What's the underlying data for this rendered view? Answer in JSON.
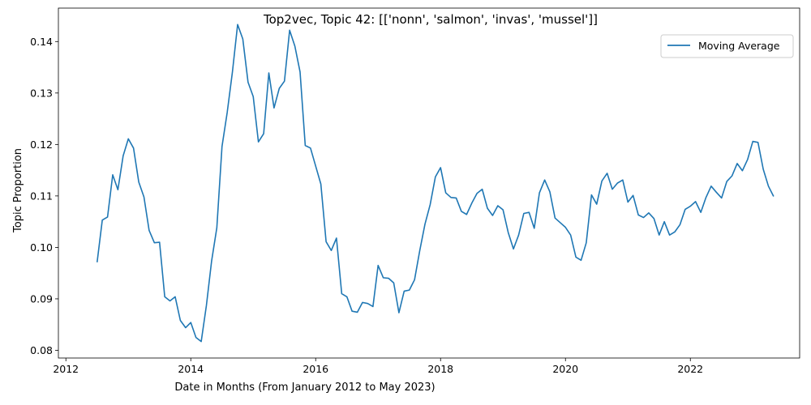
{
  "chart_data": {
    "type": "line",
    "title": "Top2vec, Topic 42: [['nonn', 'salmon', 'invas', 'mussel']]",
    "xlabel": "Date in Months (From January 2012 to May 2023)",
    "ylabel": "Topic Proportion",
    "xlim": [
      2011.88,
      2023.75
    ],
    "ylim": [
      0.0785,
      0.1465
    ],
    "xticks": [
      2012,
      2014,
      2016,
      2018,
      2020,
      2022
    ],
    "xtick_labels": [
      "2012",
      "2014",
      "2016",
      "2018",
      "2020",
      "2022"
    ],
    "yticks": [
      0.08,
      0.09,
      0.1,
      0.11,
      0.12,
      0.13,
      0.14
    ],
    "ytick_labels": [
      "0.08",
      "0.09",
      "0.10",
      "0.11",
      "0.12",
      "0.13",
      "0.14"
    ],
    "grid": false,
    "legend_position": "top-right",
    "line_color": "#1f77b4",
    "series": [
      {
        "name": "Moving Average",
        "x": [
          2012.5,
          2012.583,
          2012.667,
          2012.75,
          2012.833,
          2012.917,
          2013.0,
          2013.083,
          2013.167,
          2013.25,
          2013.333,
          2013.417,
          2013.5,
          2013.583,
          2013.667,
          2013.75,
          2013.833,
          2013.917,
          2014.0,
          2014.083,
          2014.167,
          2014.25,
          2014.333,
          2014.417,
          2014.5,
          2014.583,
          2014.667,
          2014.75,
          2014.833,
          2014.917,
          2015.0,
          2015.083,
          2015.167,
          2015.25,
          2015.333,
          2015.417,
          2015.5,
          2015.583,
          2015.667,
          2015.75,
          2015.833,
          2015.917,
          2016.0,
          2016.083,
          2016.167,
          2016.25,
          2016.333,
          2016.417,
          2016.5,
          2016.583,
          2016.667,
          2016.75,
          2016.833,
          2016.917,
          2017.0,
          2017.083,
          2017.167,
          2017.25,
          2017.333,
          2017.417,
          2017.5,
          2017.583,
          2017.667,
          2017.75,
          2017.833,
          2017.917,
          2018.0,
          2018.083,
          2018.167,
          2018.25,
          2018.333,
          2018.417,
          2018.5,
          2018.583,
          2018.667,
          2018.75,
          2018.833,
          2018.917,
          2019.0,
          2019.083,
          2019.167,
          2019.25,
          2019.333,
          2019.417,
          2019.5,
          2019.583,
          2019.667,
          2019.75,
          2019.833,
          2019.917,
          2020.0,
          2020.083,
          2020.167,
          2020.25,
          2020.333,
          2020.417,
          2020.5,
          2020.583,
          2020.667,
          2020.75,
          2020.833,
          2020.917,
          2021.0,
          2021.083,
          2021.167,
          2021.25,
          2021.333,
          2021.417,
          2021.5,
          2021.583,
          2021.667,
          2021.75,
          2021.833,
          2021.917,
          2022.0,
          2022.083,
          2022.167,
          2022.25,
          2022.333,
          2022.417,
          2022.5,
          2022.583,
          2022.667,
          2022.75,
          2022.833,
          2022.917,
          2023.0,
          2023.083,
          2023.167,
          2023.25,
          2023.333
        ],
        "values": [
          0.0971,
          0.1053,
          0.1059,
          0.1141,
          0.1112,
          0.1178,
          0.1211,
          0.1193,
          0.1127,
          0.1098,
          0.1033,
          0.1009,
          0.101,
          0.0904,
          0.0896,
          0.0904,
          0.0858,
          0.0844,
          0.0854,
          0.0825,
          0.0817,
          0.0887,
          0.0973,
          0.1038,
          0.1196,
          0.1262,
          0.1341,
          0.1433,
          0.1405,
          0.1321,
          0.1293,
          0.1205,
          0.1221,
          0.1339,
          0.1271,
          0.1309,
          0.1323,
          0.1422,
          0.1391,
          0.1341,
          0.1198,
          0.1193,
          0.1158,
          0.1123,
          0.1011,
          0.0994,
          0.1018,
          0.091,
          0.0904,
          0.0876,
          0.0874,
          0.0893,
          0.0891,
          0.0885,
          0.0965,
          0.0941,
          0.094,
          0.0931,
          0.0873,
          0.0915,
          0.0917,
          0.0937,
          0.0994,
          0.1045,
          0.1083,
          0.1137,
          0.1155,
          0.1106,
          0.1097,
          0.1096,
          0.107,
          0.1064,
          0.1086,
          0.1105,
          0.1113,
          0.1076,
          0.1062,
          0.1081,
          0.1073,
          0.1029,
          0.0997,
          0.1024,
          0.1066,
          0.1068,
          0.1037,
          0.1106,
          0.1131,
          0.1108,
          0.1057,
          0.1048,
          0.1039,
          0.1024,
          0.0981,
          0.0975,
          0.1009,
          0.1102,
          0.1084,
          0.1129,
          0.1144,
          0.1113,
          0.1125,
          0.1131,
          0.1088,
          0.1101,
          0.1063,
          0.1058,
          0.1067,
          0.1056,
          0.1024,
          0.105,
          0.1024,
          0.103,
          0.1044,
          0.1074,
          0.108,
          0.1089,
          0.1068,
          0.1097,
          0.1119,
          0.1107,
          0.1096,
          0.1128,
          0.1139,
          0.1163,
          0.1149,
          0.1171,
          0.1206,
          0.1204,
          0.1152,
          0.1119,
          0.1099
        ]
      }
    ]
  }
}
